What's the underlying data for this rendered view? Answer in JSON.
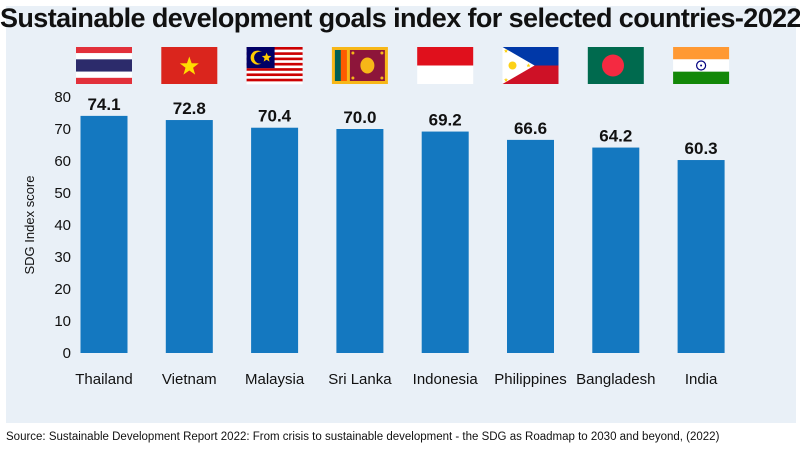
{
  "header": {
    "title": "Sustainable development goals index for selected countries-2022"
  },
  "footer": {
    "source": "Source: Sustainable Development Report 2022: From crisis to sustainable development - the SDG as Roadmap to 2030 and beyond, (2022)"
  },
  "colors": {
    "bar": "#1478c0",
    "panel_background": "#e9f0f7",
    "text": "#111111"
  },
  "flags": [
    "thailand-flag-icon",
    "vietnam-flag-icon",
    "malaysia-flag-icon",
    "sri-lanka-flag-icon",
    "indonesia-flag-icon",
    "philippines-flag-icon",
    "bangladesh-flag-icon",
    "india-flag-icon"
  ],
  "chart_data": {
    "type": "bar",
    "title": "Sustainable development goals index for selected countries-2022",
    "xlabel": "",
    "ylabel": "SDG Index score",
    "categories": [
      "Thailand",
      "Vietnam",
      "Malaysia",
      "Sri Lanka",
      "Indonesia",
      "Philippines",
      "Bangladesh",
      "India"
    ],
    "values": [
      74.1,
      72.8,
      70.4,
      70.0,
      69.2,
      66.6,
      64.2,
      60.3
    ],
    "value_labels": [
      "74.1",
      "72.8",
      "70.4",
      "70.0",
      "69.2",
      "66.6",
      "64.2",
      "60.3"
    ],
    "ylim": [
      0,
      80
    ],
    "yticks": [
      0,
      10,
      20,
      30,
      40,
      50,
      60,
      70,
      80
    ],
    "grid": false,
    "legend": "none"
  }
}
